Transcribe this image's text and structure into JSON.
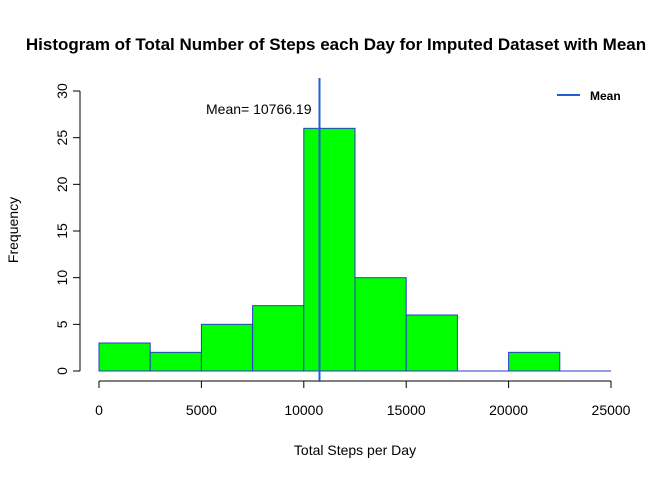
{
  "chart_data": {
    "type": "bar",
    "title": "Histogram of Total Number of Steps each Day for Imputed Dataset with Mean",
    "xlabel": "Total Steps per Day",
    "ylabel": "Frequency",
    "xlim": [
      0,
      25000
    ],
    "ylim": [
      0,
      30
    ],
    "x_ticks": [
      "0",
      "5000",
      "10000",
      "15000",
      "20000",
      "25000"
    ],
    "y_ticks": [
      "0",
      "5",
      "10",
      "15",
      "20",
      "25",
      "30"
    ],
    "bins": [
      {
        "from": 0,
        "to": 2500,
        "count": 3
      },
      {
        "from": 2500,
        "to": 5000,
        "count": 2
      },
      {
        "from": 5000,
        "to": 7500,
        "count": 5
      },
      {
        "from": 7500,
        "to": 10000,
        "count": 7
      },
      {
        "from": 10000,
        "to": 12500,
        "count": 26
      },
      {
        "from": 12500,
        "to": 15000,
        "count": 10
      },
      {
        "from": 15000,
        "to": 17500,
        "count": 6
      },
      {
        "from": 17500,
        "to": 20000,
        "count": 0
      },
      {
        "from": 20000,
        "to": 22500,
        "count": 2
      },
      {
        "from": 22500,
        "to": 25000,
        "count": 0
      }
    ],
    "mean": 10766.19,
    "mean_label": "Mean= 10766.19",
    "legend": [
      {
        "name": "Mean",
        "color": "#1f5fd6"
      }
    ],
    "legend_position": "top-right",
    "bar_fill": "#00ff00",
    "bar_border": "#2a3bcc",
    "mean_line_color": "#1f5fd6",
    "grid": false
  }
}
